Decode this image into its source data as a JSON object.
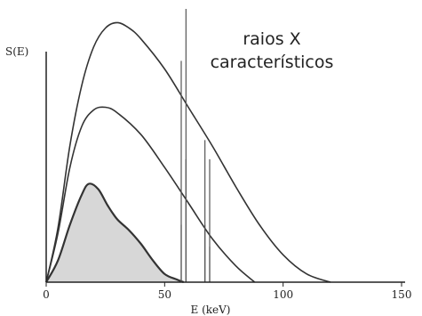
{
  "chart_data": {
    "type": "line",
    "xlabel": "E (keV)",
    "ylabel": "S(E)",
    "xlim": [
      0,
      150
    ],
    "ylim": [
      0,
      100
    ],
    "xticks": [
      0,
      50,
      100,
      150
    ],
    "annotation_lines": [
      "raios X",
      "característicos"
    ],
    "grid": false,
    "series": [
      {
        "kVp": 120,
        "shaded": false,
        "x": [
          0,
          5,
          10,
          15,
          20,
          25,
          30,
          35,
          40,
          50,
          60,
          70,
          80,
          90,
          100,
          110,
          120
        ],
        "y": [
          0,
          20,
          50,
          72,
          86,
          93,
          95,
          93,
          89,
          78,
          64,
          50,
          35,
          21,
          10,
          3,
          0
        ]
      },
      {
        "kVp": 88,
        "shaded": false,
        "x": [
          0,
          5,
          10,
          15,
          20,
          25,
          30,
          40,
          50,
          60,
          70,
          80,
          88
        ],
        "y": [
          0,
          18,
          42,
          57,
          63,
          64,
          62,
          54,
          42,
          29,
          16,
          6,
          0
        ]
      },
      {
        "kVp": 58,
        "shaded": true,
        "x": [
          0,
          5,
          10,
          15,
          18,
          22,
          26,
          30,
          35,
          40,
          45,
          50,
          55,
          58
        ],
        "y": [
          0,
          8,
          21,
          32,
          36,
          34,
          28,
          23,
          19,
          14,
          8,
          3,
          1,
          0
        ]
      }
    ],
    "characteristic_lines": [
      {
        "x": 57,
        "y": 81
      },
      {
        "x": 59,
        "y": 100
      },
      {
        "x": 67,
        "y": 52
      },
      {
        "x": 69,
        "y": 45
      },
      {
        "x": 57,
        "y": 21
      },
      {
        "x": 59,
        "y": 45
      },
      {
        "x": 67,
        "y": 21
      },
      {
        "x": 69,
        "y": 13
      }
    ]
  }
}
